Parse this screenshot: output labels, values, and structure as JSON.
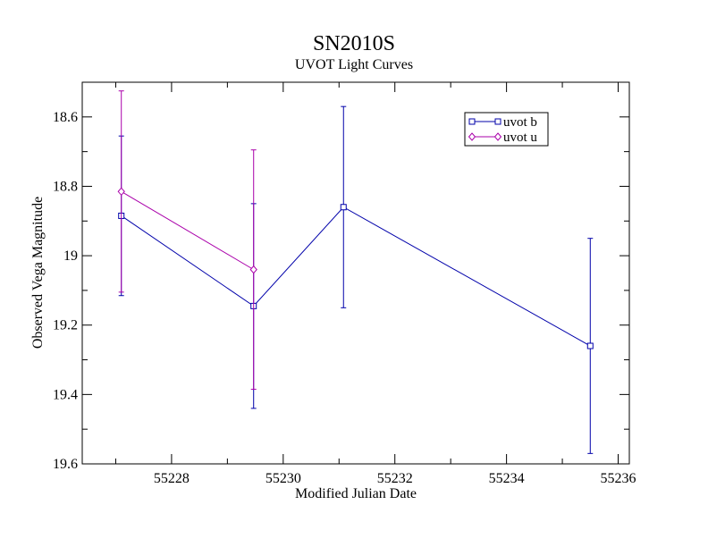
{
  "chart_data": {
    "type": "line",
    "title": "SN2010S",
    "subtitle": "UVOT Light Curves",
    "xlabel": "Modified Julian Date",
    "ylabel": "Observed Vega Magnitude",
    "xlim": [
      55226.4,
      55236.2
    ],
    "ylim": [
      19.6,
      18.5
    ],
    "y_inverted": true,
    "grid": false,
    "legend_position": "top-right",
    "x_ticks": [
      55228,
      55230,
      55232,
      55234,
      55236
    ],
    "x_tick_labels": [
      "55228",
      "55230",
      "55232",
      "55234",
      "55236"
    ],
    "y_ticks": [
      18.6,
      18.8,
      19.0,
      19.2,
      19.4,
      19.6
    ],
    "y_tick_labels": [
      "18.6",
      "18.8",
      "19",
      "19.2",
      "19.4",
      "19.6"
    ],
    "series": [
      {
        "name": "uvot b",
        "color": "#0000aa",
        "marker": "square",
        "x": [
          55227.1,
          55229.47,
          55231.08,
          55235.5
        ],
        "y": [
          18.885,
          19.145,
          18.86,
          19.26
        ],
        "err": [
          0.23,
          0.295,
          0.29,
          0.31
        ]
      },
      {
        "name": "uvot u",
        "color": "#aa00aa",
        "marker": "diamond",
        "x": [
          55227.1,
          55229.47
        ],
        "y": [
          18.815,
          19.04
        ],
        "err": [
          0.29,
          0.345
        ]
      }
    ]
  }
}
